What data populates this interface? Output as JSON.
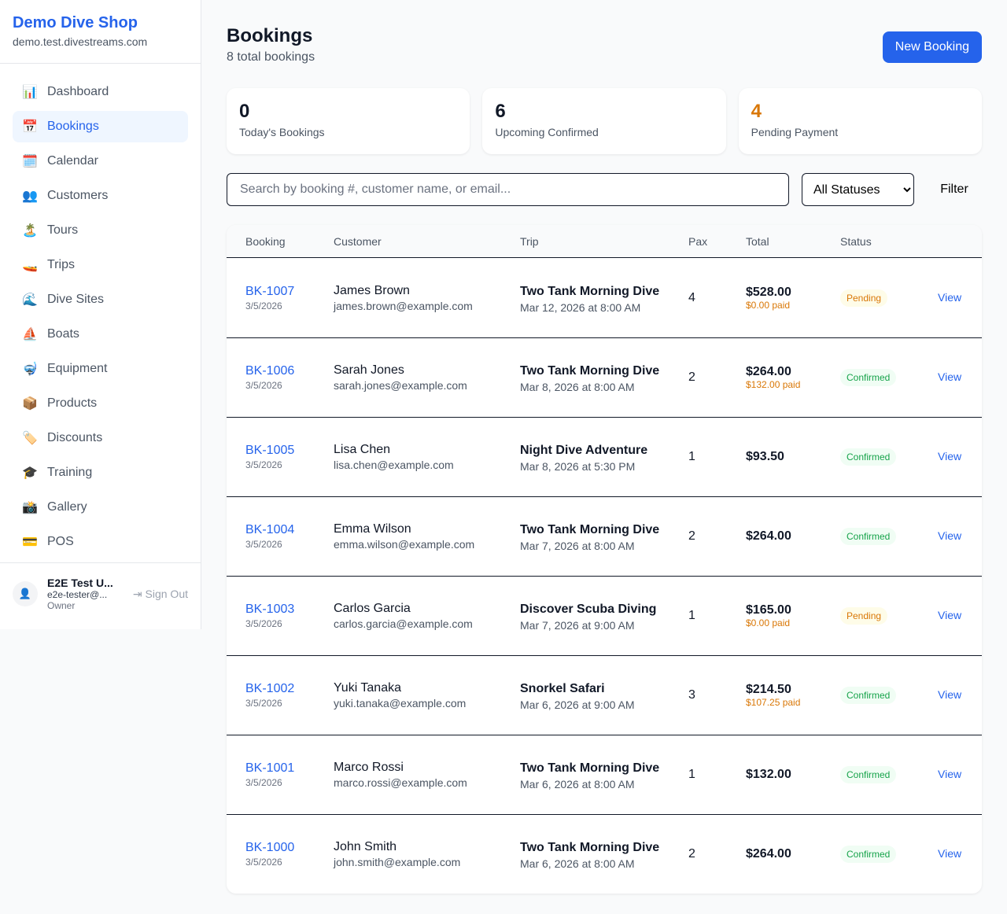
{
  "sidebar": {
    "shop_name": "Demo Dive Shop",
    "domain": "demo.test.divestreams.com",
    "items": [
      {
        "icon": "📊",
        "label": "Dashboard"
      },
      {
        "icon": "📅",
        "label": "Bookings"
      },
      {
        "icon": "🗓️",
        "label": "Calendar"
      },
      {
        "icon": "👥",
        "label": "Customers"
      },
      {
        "icon": "🏝️",
        "label": "Tours"
      },
      {
        "icon": "🚤",
        "label": "Trips"
      },
      {
        "icon": "🌊",
        "label": "Dive Sites"
      },
      {
        "icon": "⛵",
        "label": "Boats"
      },
      {
        "icon": "🤿",
        "label": "Equipment"
      },
      {
        "icon": "📦",
        "label": "Products"
      },
      {
        "icon": "🏷️",
        "label": "Discounts"
      },
      {
        "icon": "🎓",
        "label": "Training"
      },
      {
        "icon": "📸",
        "label": "Gallery"
      },
      {
        "icon": "💳",
        "label": "POS"
      }
    ],
    "active": "Bookings",
    "user": {
      "name": "E2E Test U...",
      "email": "e2e-tester@...",
      "role": "Owner",
      "sign_out": "Sign Out"
    }
  },
  "header": {
    "title": "Bookings",
    "subtitle": "8 total bookings",
    "new_button": "New Booking"
  },
  "stats": [
    {
      "value": "0",
      "label": "Today's Bookings",
      "color": "#111827"
    },
    {
      "value": "6",
      "label": "Upcoming Confirmed",
      "color": "#111827"
    },
    {
      "value": "4",
      "label": "Pending Payment",
      "color": "#d97706"
    }
  ],
  "filters": {
    "search_placeholder": "Search by booking #, customer name, or email...",
    "status_selected": "All Statuses",
    "filter_button": "Filter"
  },
  "table": {
    "headers": [
      "Booking",
      "Customer",
      "Trip",
      "Pax",
      "Total",
      "Status"
    ],
    "action_label": "View",
    "rows": [
      {
        "id": "BK-1007",
        "date": "3/5/2026",
        "customer": "James Brown",
        "email": "james.brown@example.com",
        "trip": "Two Tank Morning Dive",
        "trip_date": "Mar 12, 2026 at 8:00 AM",
        "pax": "4",
        "total": "$528.00",
        "paid": "$0.00 paid",
        "status": "Pending"
      },
      {
        "id": "BK-1006",
        "date": "3/5/2026",
        "customer": "Sarah Jones",
        "email": "sarah.jones@example.com",
        "trip": "Two Tank Morning Dive",
        "trip_date": "Mar 8, 2026 at 8:00 AM",
        "pax": "2",
        "total": "$264.00",
        "paid": "$132.00 paid",
        "status": "Confirmed"
      },
      {
        "id": "BK-1005",
        "date": "3/5/2026",
        "customer": "Lisa Chen",
        "email": "lisa.chen@example.com",
        "trip": "Night Dive Adventure",
        "trip_date": "Mar 8, 2026 at 5:30 PM",
        "pax": "1",
        "total": "$93.50",
        "paid": "",
        "status": "Confirmed"
      },
      {
        "id": "BK-1004",
        "date": "3/5/2026",
        "customer": "Emma Wilson",
        "email": "emma.wilson@example.com",
        "trip": "Two Tank Morning Dive",
        "trip_date": "Mar 7, 2026 at 8:00 AM",
        "pax": "2",
        "total": "$264.00",
        "paid": "",
        "status": "Confirmed"
      },
      {
        "id": "BK-1003",
        "date": "3/5/2026",
        "customer": "Carlos Garcia",
        "email": "carlos.garcia@example.com",
        "trip": "Discover Scuba Diving",
        "trip_date": "Mar 7, 2026 at 9:00 AM",
        "pax": "1",
        "total": "$165.00",
        "paid": "$0.00 paid",
        "status": "Pending"
      },
      {
        "id": "BK-1002",
        "date": "3/5/2026",
        "customer": "Yuki Tanaka",
        "email": "yuki.tanaka@example.com",
        "trip": "Snorkel Safari",
        "trip_date": "Mar 6, 2026 at 9:00 AM",
        "pax": "3",
        "total": "$214.50",
        "paid": "$107.25 paid",
        "status": "Confirmed"
      },
      {
        "id": "BK-1001",
        "date": "3/5/2026",
        "customer": "Marco Rossi",
        "email": "marco.rossi@example.com",
        "trip": "Two Tank Morning Dive",
        "trip_date": "Mar 6, 2026 at 8:00 AM",
        "pax": "1",
        "total": "$132.00",
        "paid": "",
        "status": "Confirmed"
      },
      {
        "id": "BK-1000",
        "date": "3/5/2026",
        "customer": "John Smith",
        "email": "john.smith@example.com",
        "trip": "Two Tank Morning Dive",
        "trip_date": "Mar 6, 2026 at 8:00 AM",
        "pax": "2",
        "total": "$264.00",
        "paid": "",
        "status": "Confirmed"
      }
    ]
  }
}
